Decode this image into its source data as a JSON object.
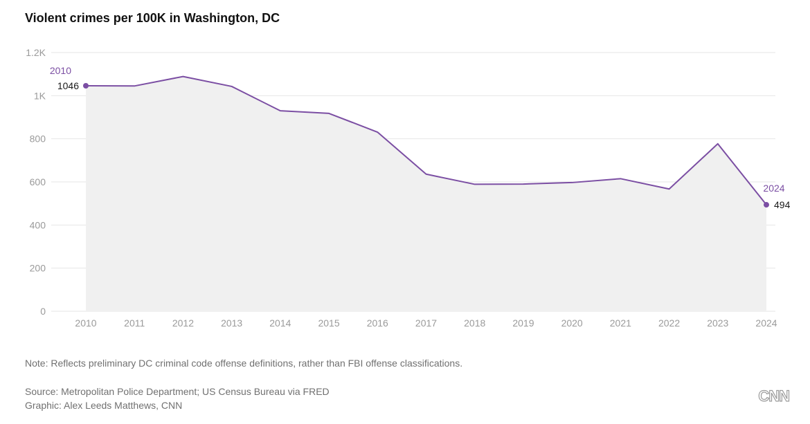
{
  "title": "Violent crimes per 100K in Washington, DC",
  "note": "Note: Reflects preliminary DC criminal code offense definitions, rather than FBI offense classifications.",
  "source": "Source: Metropolitan Police Department; US Census Bureau via FRED",
  "credit": "Graphic: Alex Leeds Matthews, CNN",
  "logo": "CNN",
  "colors": {
    "line": "#7b4ea3",
    "area": "#f0f0f0",
    "label_year": "#7b4ea3"
  },
  "chart_data": {
    "type": "area",
    "x": [
      2010,
      2011,
      2012,
      2013,
      2014,
      2015,
      2016,
      2017,
      2018,
      2019,
      2020,
      2021,
      2022,
      2023,
      2024
    ],
    "values": [
      1046,
      1045,
      1089,
      1043,
      930,
      918,
      831,
      636,
      589,
      590,
      597,
      615,
      567,
      777,
      494
    ],
    "ylim": [
      0,
      1200
    ],
    "yticks": [
      0,
      200,
      400,
      600,
      800,
      1000,
      1200
    ],
    "ytick_labels": [
      "0",
      "200",
      "400",
      "600",
      "800",
      "1K",
      "1.2K"
    ],
    "xtick_labels": [
      "2010",
      "2011",
      "2012",
      "2013",
      "2014",
      "2015",
      "2016",
      "2017",
      "2018",
      "2019",
      "2020",
      "2021",
      "2022",
      "2023",
      "2024"
    ],
    "grid": true,
    "annotations": [
      {
        "year_label": "2010",
        "value_label": "1046"
      },
      {
        "year_label": "2024",
        "value_label": "494"
      }
    ]
  }
}
